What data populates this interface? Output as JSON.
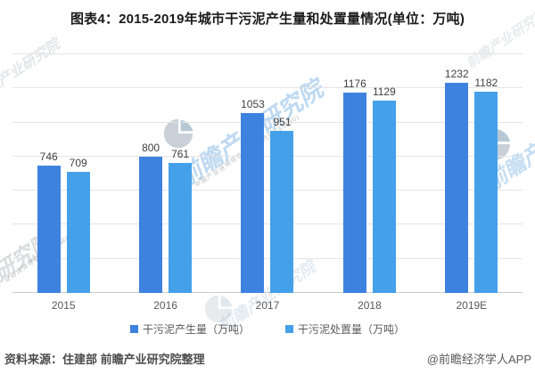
{
  "title": "图表4：2015-2019年城市干污泥产生量和处置量情况(单位：万吨)",
  "chart_data": {
    "type": "bar",
    "categories": [
      "2015",
      "2016",
      "2017",
      "2018",
      "2019E"
    ],
    "series": [
      {
        "name": "干污泥产生量（万吨）",
        "color": "#3e82e0",
        "values": [
          746,
          800,
          1053,
          1176,
          1232
        ]
      },
      {
        "name": "干污泥处置量（万吨）",
        "color": "#45a0ea",
        "values": [
          709,
          761,
          951,
          1129,
          1182
        ]
      }
    ],
    "title": "图表4：2015-2019年城市干污泥产生量和处置量情况(单位：万吨)",
    "xlabel": "",
    "ylabel": "",
    "ylim": [
      0,
      1400
    ],
    "grid_interval": 200,
    "grid": "horizontal-only",
    "y_axis_labels_visible": false,
    "legend_position": "bottom",
    "value_labels": "above-bars"
  },
  "footer": {
    "source": "资料来源：住建部 前瞻产业研究院整理",
    "credit": "@前瞻经济学人APP"
  },
  "watermarks": {
    "brand": "前瞻产业研究院",
    "brand_partial": "业研究院",
    "tagline": "中国产业咨询领导者(股票代码835990)"
  }
}
